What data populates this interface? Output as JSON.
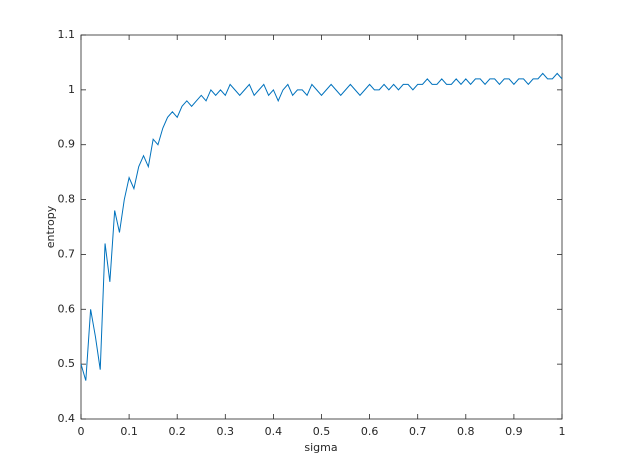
{
  "chart_data": {
    "type": "line",
    "x_label": "sigma",
    "y_label": "entropy",
    "x": [
      0,
      0.01,
      0.02,
      0.03,
      0.04,
      0.05,
      0.06,
      0.07,
      0.08,
      0.09,
      0.1,
      0.11,
      0.12,
      0.13,
      0.14,
      0.15,
      0.16,
      0.17,
      0.18,
      0.19,
      0.2,
      0.21,
      0.22,
      0.23,
      0.24,
      0.25,
      0.26,
      0.27,
      0.28,
      0.29,
      0.3,
      0.31,
      0.32,
      0.33,
      0.34,
      0.35,
      0.36,
      0.37,
      0.38,
      0.39,
      0.4,
      0.41,
      0.42,
      0.43,
      0.44,
      0.45,
      0.46,
      0.47,
      0.48,
      0.49,
      0.5,
      0.51,
      0.52,
      0.53,
      0.54,
      0.55,
      0.56,
      0.57,
      0.58,
      0.59,
      0.6,
      0.61,
      0.62,
      0.63,
      0.64,
      0.65,
      0.66,
      0.67,
      0.68,
      0.69,
      0.7,
      0.71,
      0.72,
      0.73,
      0.74,
      0.75,
      0.76,
      0.77,
      0.78,
      0.79,
      0.8,
      0.81,
      0.82,
      0.83,
      0.84,
      0.85,
      0.86,
      0.87,
      0.88,
      0.89,
      0.9,
      0.91,
      0.92,
      0.93,
      0.94,
      0.95,
      0.96,
      0.97,
      0.98,
      0.99,
      1
    ],
    "series": [
      {
        "color": "#0072bd",
        "values": [
          0.5,
          0.47,
          0.6,
          0.55,
          0.49,
          0.72,
          0.65,
          0.78,
          0.74,
          0.8,
          0.84,
          0.82,
          0.86,
          0.88,
          0.86,
          0.91,
          0.9,
          0.93,
          0.95,
          0.96,
          0.95,
          0.97,
          0.98,
          0.97,
          0.98,
          0.99,
          0.98,
          1.0,
          0.99,
          1.0,
          0.99,
          1.01,
          1.0,
          0.99,
          1.0,
          1.01,
          0.99,
          1.0,
          1.01,
          0.99,
          1.0,
          0.98,
          1.0,
          1.01,
          0.99,
          1.0,
          1.0,
          0.99,
          1.01,
          1.0,
          0.99,
          1.0,
          1.01,
          1.0,
          0.99,
          1.0,
          1.01,
          1.0,
          0.99,
          1.0,
          1.01,
          1.0,
          1.0,
          1.01,
          1.0,
          1.01,
          1.0,
          1.01,
          1.01,
          1.0,
          1.01,
          1.01,
          1.02,
          1.01,
          1.01,
          1.02,
          1.01,
          1.01,
          1.02,
          1.01,
          1.02,
          1.01,
          1.02,
          1.02,
          1.01,
          1.02,
          1.02,
          1.01,
          1.02,
          1.02,
          1.01,
          1.02,
          1.02,
          1.01,
          1.02,
          1.02,
          1.03,
          1.02,
          1.02,
          1.03,
          1.02
        ]
      }
    ],
    "xlim": [
      0,
      1
    ],
    "xticks": [
      0,
      0.1,
      0.2,
      0.3,
      0.4,
      0.5,
      0.6,
      0.7,
      0.8,
      0.9,
      1
    ],
    "ylim": [
      0.4,
      1.1
    ],
    "yticks": [
      0.4,
      0.5,
      0.6,
      0.7,
      0.8,
      0.9,
      1,
      1.1
    ]
  }
}
